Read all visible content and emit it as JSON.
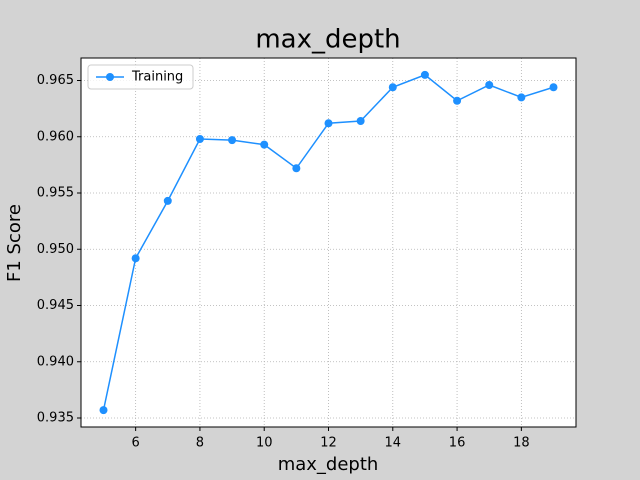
{
  "chart_data": {
    "type": "line",
    "title": "max_depth",
    "x_label": "max_depth",
    "y_label": "F1 Score",
    "x": [
      5,
      6,
      7,
      8,
      9,
      10,
      11,
      12,
      13,
      14,
      15,
      16,
      17,
      18,
      19
    ],
    "series": [
      {
        "name": "Training",
        "color": "#1e90ff",
        "values": [
          0.9357,
          0.9492,
          0.9543,
          0.9598,
          0.9597,
          0.9593,
          0.9572,
          0.9612,
          0.9614,
          0.9644,
          0.9655,
          0.9632,
          0.9646,
          0.9635,
          0.9644
        ]
      }
    ],
    "xlim": [
      4.3,
      19.7
    ],
    "xticks": [
      6,
      8,
      10,
      12,
      14,
      16,
      18
    ],
    "ylim": [
      0.9342,
      0.967
    ],
    "yticks": [
      0.935,
      {
        "value": 0.94,
        "label": "0.940"
      },
      0.945,
      {
        "value": 0.95,
        "label": "0.950"
      },
      0.955,
      {
        "value": 0.96,
        "label": "0.960"
      },
      0.965
    ],
    "grid": true,
    "legend": "upper left"
  }
}
